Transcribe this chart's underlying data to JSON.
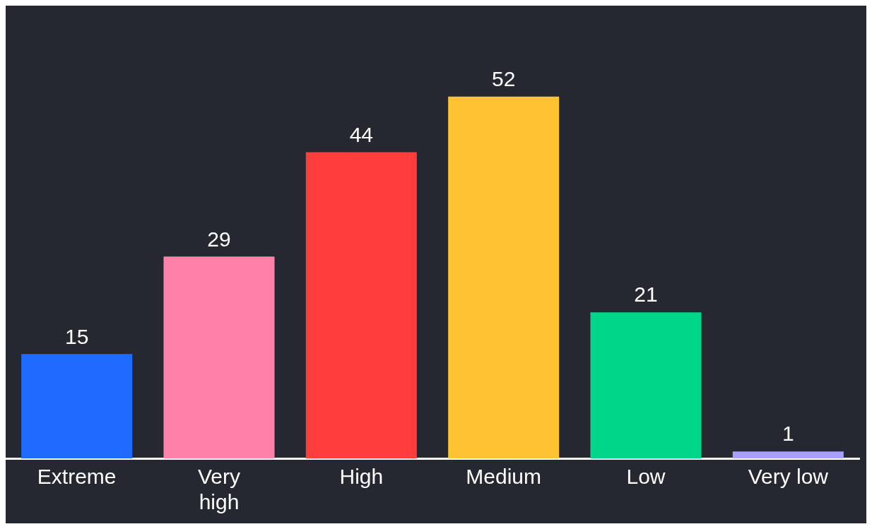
{
  "chart_data": {
    "type": "bar",
    "categories": [
      "Extreme",
      "Very high",
      "High",
      "Medium",
      "Low",
      "Very low"
    ],
    "values": [
      15,
      29,
      44,
      52,
      21,
      1
    ],
    "colors": [
      "#1f6bff",
      "#ff80a8",
      "#ff3d3d",
      "#ffc233",
      "#00d68a",
      "#a8a0ff"
    ],
    "data_labels": true,
    "legend": false
  }
}
